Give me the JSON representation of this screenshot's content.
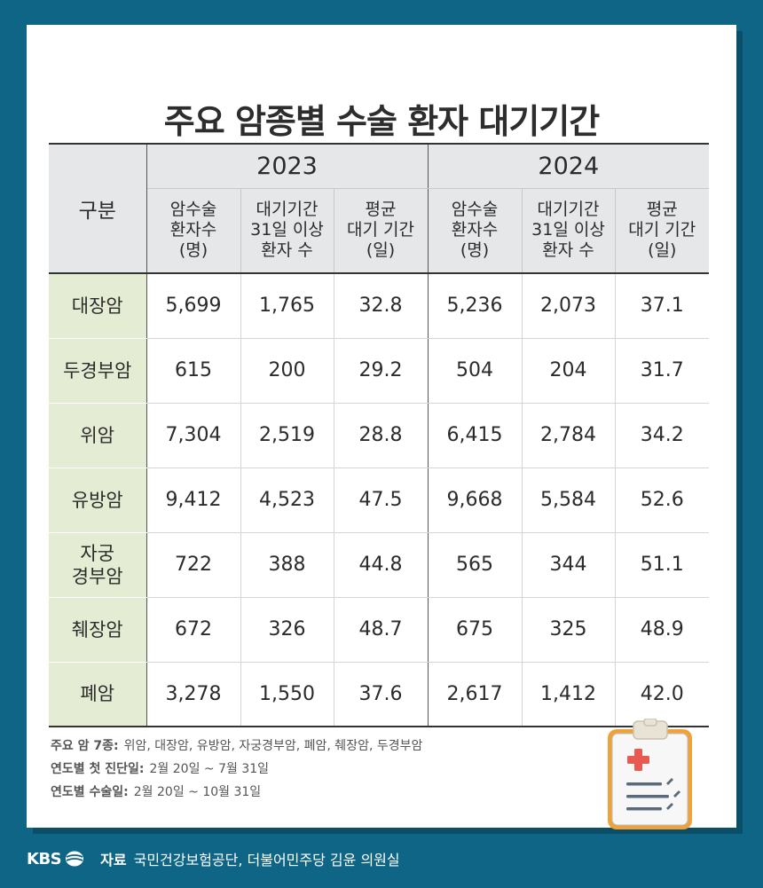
{
  "title": "주요 암종별 수술 환자 대기기간",
  "table": {
    "category_header": "구분",
    "years": [
      "2023",
      "2024"
    ],
    "sub_headers": [
      [
        "암수술",
        "환자수",
        "(명)"
      ],
      [
        "대기기간",
        "31일 이상",
        "환자 수"
      ],
      [
        "평균",
        "대기 기간",
        "(일)"
      ]
    ],
    "rows": [
      {
        "label": [
          "대장암"
        ],
        "values": [
          "5,699",
          "1,765",
          "32.8",
          "5,236",
          "2,073",
          "37.1"
        ]
      },
      {
        "label": [
          "두경부암"
        ],
        "values": [
          "615",
          "200",
          "29.2",
          "504",
          "204",
          "31.7"
        ]
      },
      {
        "label": [
          "위암"
        ],
        "values": [
          "7,304",
          "2,519",
          "28.8",
          "6,415",
          "2,784",
          "34.2"
        ]
      },
      {
        "label": [
          "유방암"
        ],
        "values": [
          "9,412",
          "4,523",
          "47.5",
          "9,668",
          "5,584",
          "52.6"
        ]
      },
      {
        "label": [
          "자궁",
          "경부암"
        ],
        "values": [
          "722",
          "388",
          "44.8",
          "565",
          "344",
          "51.1"
        ]
      },
      {
        "label": [
          "췌장암"
        ],
        "values": [
          "672",
          "326",
          "48.7",
          "675",
          "325",
          "48.9"
        ]
      },
      {
        "label": [
          "폐암"
        ],
        "values": [
          "3,278",
          "1,550",
          "37.6",
          "2,617",
          "1,412",
          "42.0"
        ]
      }
    ]
  },
  "notes": [
    {
      "label": "주요 암 7종:",
      "text": "위암, 대장암, 유방암, 자궁경부암, 폐암, 췌장암, 두경부암"
    },
    {
      "label": "연도별 첫 진단일:",
      "text": "2월 20일 ~ 7월 31일"
    },
    {
      "label": "연도별 수술일:",
      "text": "2월 20일 ~ 10월 31일"
    }
  ],
  "footer": {
    "logo_text": "KBS",
    "source_label": "자료",
    "source_text": "국민건강보험공단, 더불어민주당 김윤 의원실"
  },
  "icons": {
    "clipboard": "clipboard-medical-icon",
    "logo_mark": "kbs-logo-icon"
  },
  "colors": {
    "background": "#0e6585",
    "header_fill": "#e6e7e8",
    "row_label_fill": "#e4edd3",
    "clipboard_orange": "#f0a23a",
    "cross_red": "#e85a4f"
  }
}
